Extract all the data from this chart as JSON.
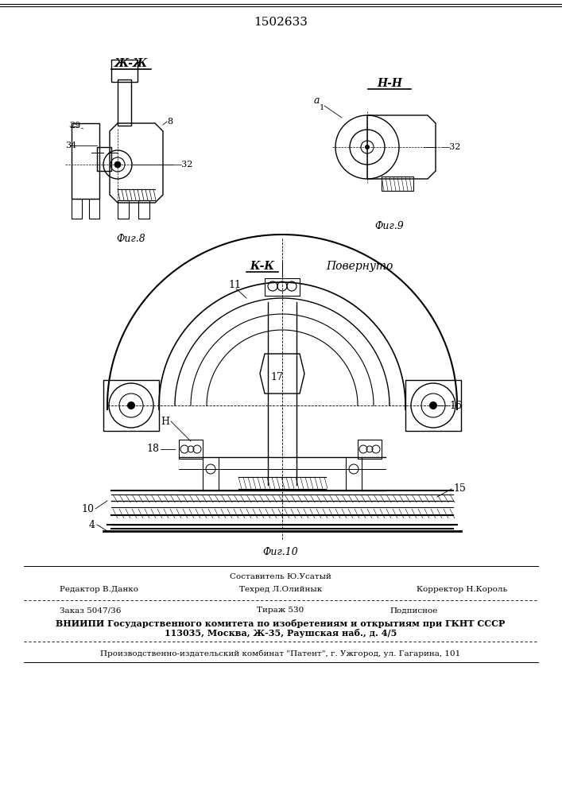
{
  "patent_number": "1502633",
  "bg_color": "#ffffff",
  "fig_width": 7.07,
  "fig_height": 10.0,
  "dpi": 100,
  "fig8_label": "Фиг.8",
  "fig9_label": "Фиг.9",
  "fig10_label": "Фиг.10",
  "section_zj": "Ж-Ж",
  "section_nn": "Н-Н",
  "section_kk": "К-К",
  "povern": "Повернуто",
  "sostavitel": "Составитель Ю.Усатый",
  "redaktor": "Редактор В.Данко",
  "tehred": "Техред Л.Олийнык",
  "korrektor": "Корректор Н.Король",
  "zakaz": "Заказ 5047/36",
  "tirazh": "Тираж 530",
  "podpisnoe": "Подписное",
  "vniipi_text": "ВНИИПИ Государственного комитета по изобретениям и открытиям при ГКНТ СССР",
  "address_text": "113035, Москва, Ж-35, Раушская наб., д. 4/5",
  "production_text": "Производственно-издательский комбинат \"Патент\", г. Ужгород, ул. Гагарина, 101"
}
